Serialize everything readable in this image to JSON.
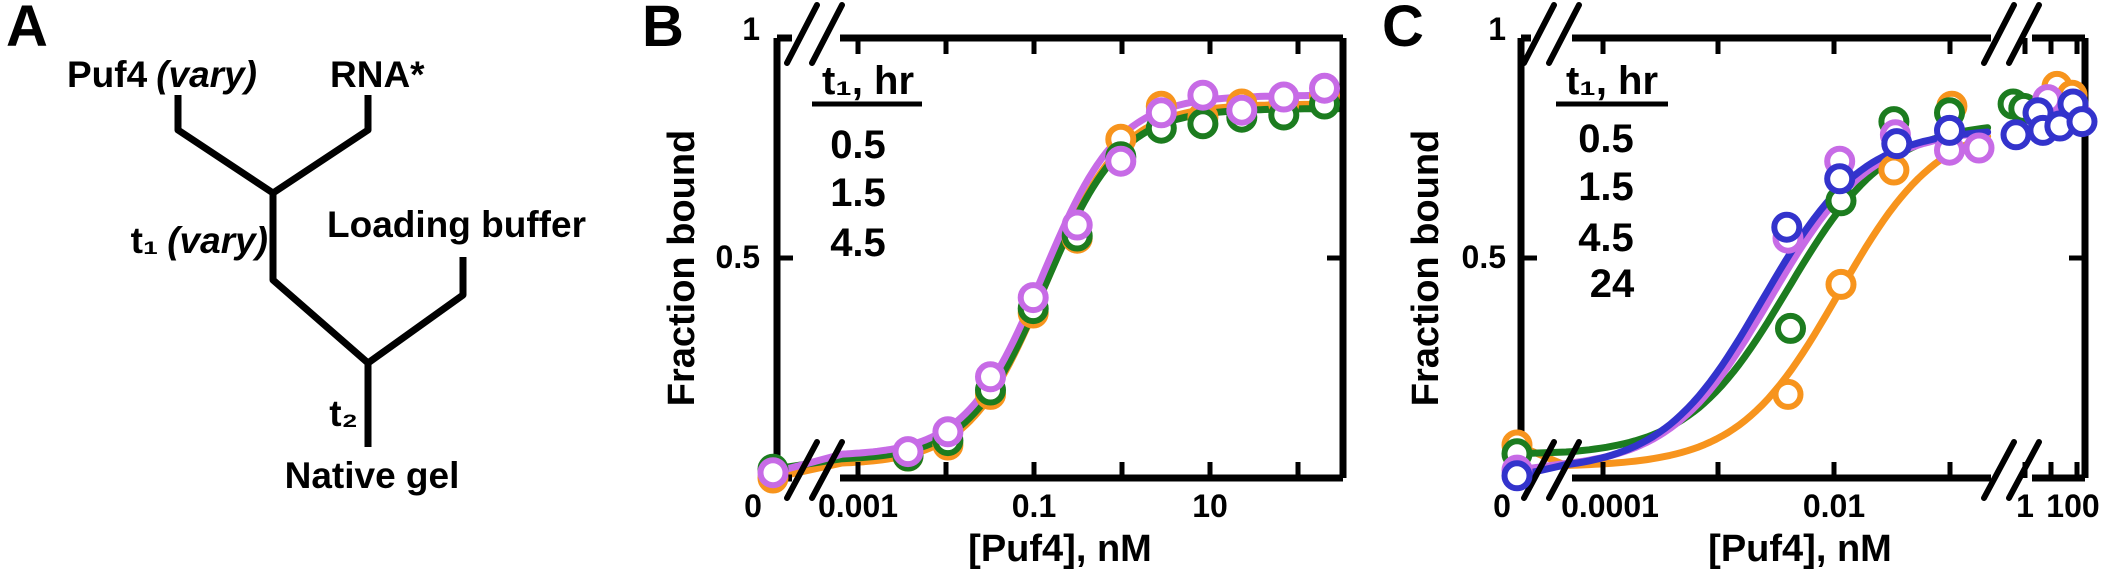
{
  "panels": {
    "A": {
      "letter": "A",
      "diagram": {
        "reagent_left": "Puf4",
        "reagent_left_note": "(vary)",
        "reagent_right": "RNA*",
        "incubation1": "t₁",
        "incubation1_note": "(vary)",
        "addition": "Loading buffer",
        "incubation2": "t₂",
        "readout": "Native gel"
      }
    },
    "B": {
      "letter": "B"
    },
    "C": {
      "letter": "C"
    }
  },
  "chart_data": [
    {
      "panel": "B",
      "type": "scatter",
      "title": "",
      "xlabel": "[Puf4], nM",
      "ylabel": "Fraction bound",
      "xscale": "log with broken axis (0 point, then 0.001 to ~300 nM)",
      "ylim": [
        0,
        1
      ],
      "x_tick_labels": [
        "0",
        "0.001",
        "0.1",
        "10"
      ],
      "y_tick_labels": [
        "1",
        "0.5"
      ],
      "legend_title": "t₁, hr",
      "legend_position": "upper left",
      "series": [
        {
          "label": "0.5",
          "color": "#F7941D",
          "x": [
            0,
            0.0037,
            0.0105,
            0.032,
            0.098,
            0.31,
            0.97,
            2.8,
            8.3,
            23,
            69,
            200
          ],
          "y": [
            0.0,
            0.05,
            0.075,
            0.19,
            0.375,
            0.545,
            0.77,
            0.845,
            0.82,
            0.85,
            0.85,
            0.87
          ],
          "fit": {
            "model": "hill",
            "kd_nM": 0.135,
            "amplitude": 0.82,
            "baseline": 0.03
          }
        },
        {
          "label": "1.5",
          "color": "#1C7C1F",
          "x": [
            0,
            0.0037,
            0.0105,
            0.032,
            0.098,
            0.31,
            0.97,
            2.8,
            8.3,
            23,
            69,
            200
          ],
          "y": [
            0.02,
            0.05,
            0.085,
            0.2,
            0.385,
            0.55,
            0.73,
            0.795,
            0.805,
            0.82,
            0.825,
            0.85
          ],
          "fit": {
            "model": "hill",
            "kd_nM": 0.135,
            "amplitude": 0.8,
            "baseline": 0.04
          }
        },
        {
          "label": "4.5",
          "color": "#C76BE6",
          "x": [
            0,
            0.0037,
            0.0105,
            0.032,
            0.098,
            0.31,
            0.97,
            2.8,
            8.3,
            23,
            69,
            200
          ],
          "y": [
            0.012,
            0.06,
            0.105,
            0.23,
            0.41,
            0.575,
            0.72,
            0.83,
            0.87,
            0.836,
            0.866,
            0.886
          ],
          "fit": {
            "model": "hill",
            "kd_nM": 0.125,
            "amplitude": 0.82,
            "baseline": 0.05
          }
        }
      ]
    },
    {
      "panel": "C",
      "type": "scatter",
      "title": "",
      "xlabel": "[Puf4], nM",
      "ylabel": "Fraction bound",
      "xscale": "log with broken axis (0 point, 0.0001 to ~0.3 nM, break, 1 to ~150 nM)",
      "ylim": [
        0,
        1
      ],
      "x_tick_labels": [
        "0",
        "0.0001",
        "0.01",
        "1",
        "100"
      ],
      "y_tick_labels": [
        "1",
        "0.5"
      ],
      "legend_title": "t₁, hr",
      "legend_position": "upper left",
      "series": [
        {
          "label": "0.5",
          "color": "#F7941D",
          "x": [
            0,
            0.004,
            0.0115,
            0.033,
            0.105,
            17,
            64
          ],
          "y": [
            0.075,
            0.19,
            0.44,
            0.7,
            0.845,
            0.89,
            0.87
          ],
          "fit": {
            "model": "hill",
            "kd_nM": 0.011,
            "amplitude": 0.79,
            "baseline": 0.025
          }
        },
        {
          "label": "1.5",
          "color": "#1C7C1F",
          "x": [
            0,
            0.0042,
            0.0115,
            0.033,
            0.1,
            0.35,
            0.9,
            3.2,
            60
          ],
          "y": [
            0.055,
            0.34,
            0.63,
            0.81,
            0.83,
            0.85,
            0.84,
            0.83,
            0.84
          ],
          "fit": {
            "model": "hill",
            "kd_nM": 0.004,
            "amplitude": 0.76,
            "baseline": 0.05
          }
        },
        {
          "label": "4.5",
          "color": "#C76BE6",
          "x": [
            0,
            0.004,
            0.0112,
            0.034,
            0.1,
            0.18,
            7.5,
            130
          ],
          "y": [
            0.018,
            0.545,
            0.72,
            0.78,
            0.745,
            0.75,
            0.86,
            0.815
          ],
          "fit": {
            "model": "hill",
            "kd_nM": 0.0028,
            "amplitude": 0.775,
            "baseline": 0.02
          }
        },
        {
          "label": "24",
          "color": "#3333CC",
          "x": [
            0,
            0.0039,
            0.0112,
            0.035,
            0.1,
            0.45,
            3.2,
            4.9,
            22,
            70,
            156
          ],
          "y": [
            0.005,
            0.57,
            0.68,
            0.76,
            0.79,
            0.78,
            0.83,
            0.79,
            0.8,
            0.85,
            0.81
          ],
          "fit": {
            "model": "hill",
            "kd_nM": 0.0024,
            "amplitude": 0.78,
            "baseline": 0.015
          }
        }
      ]
    }
  ]
}
